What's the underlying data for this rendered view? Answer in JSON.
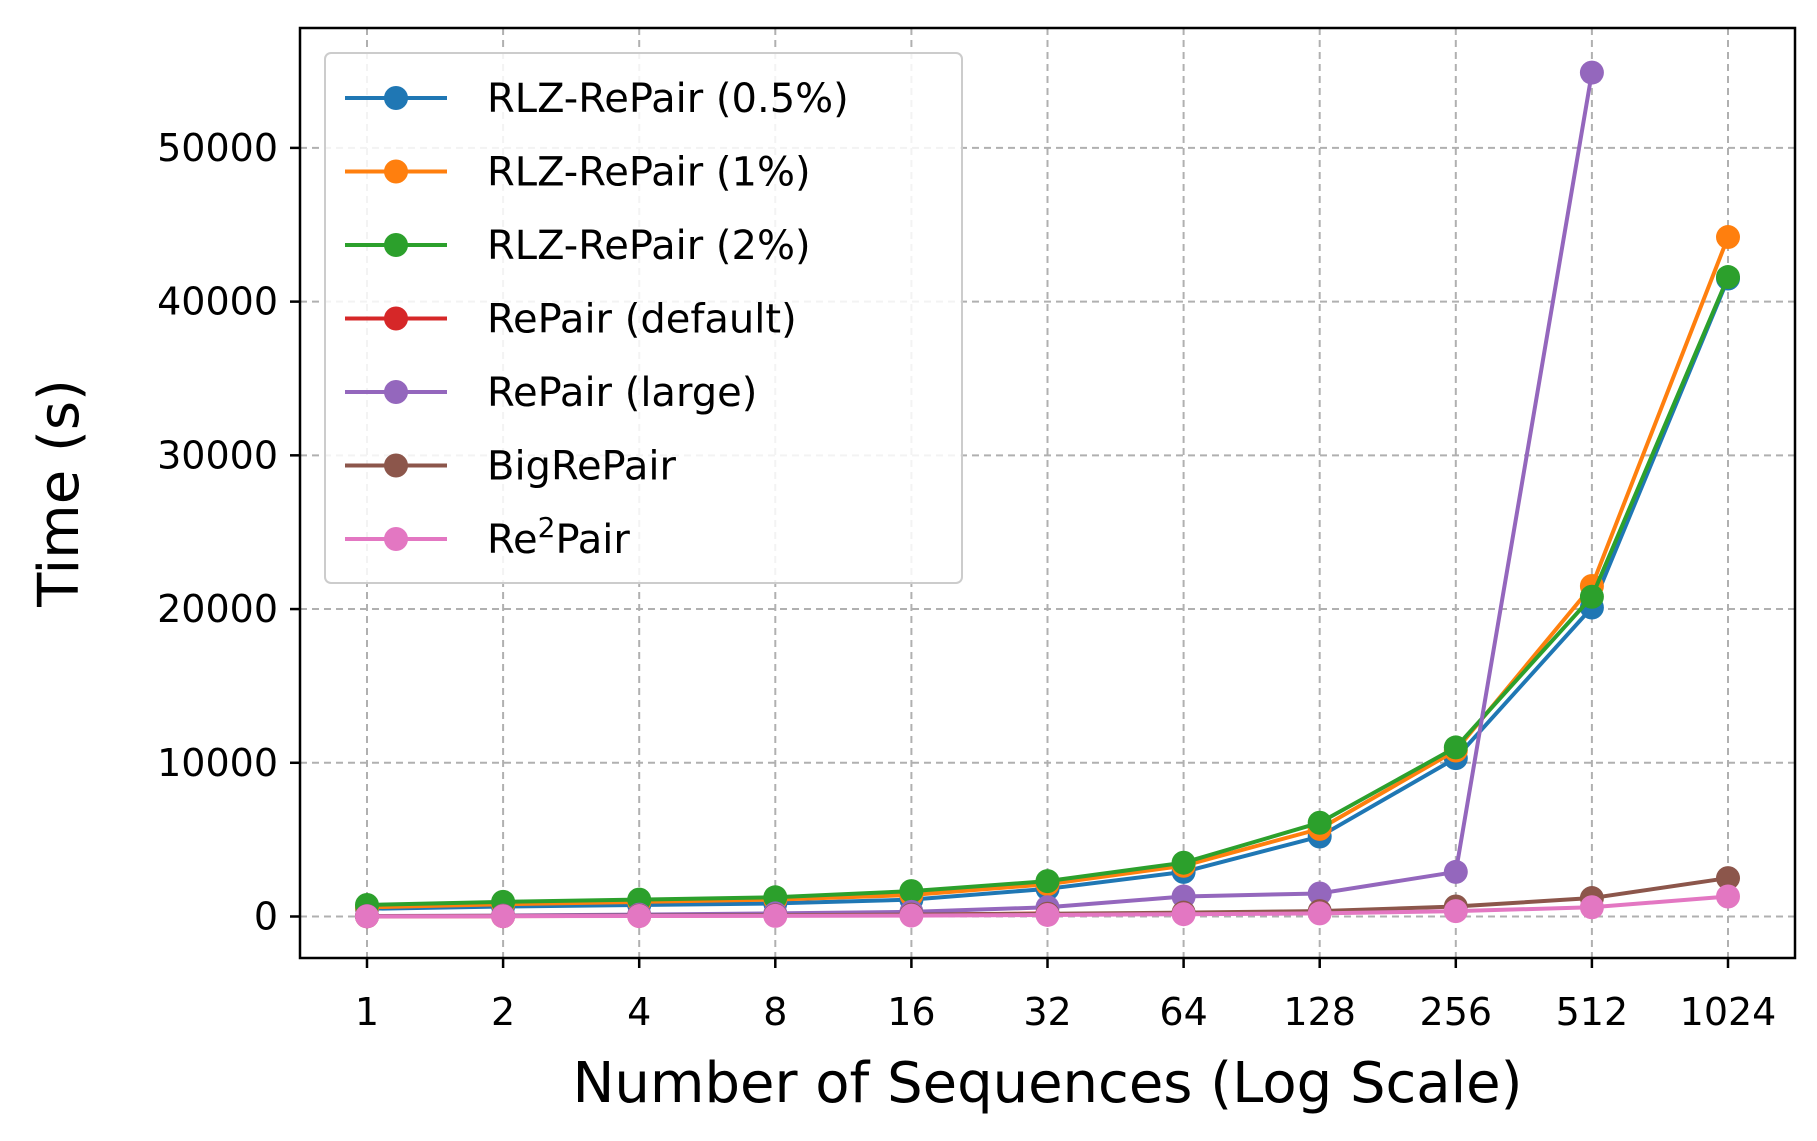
{
  "chart_data": {
    "type": "line",
    "xlabel": "Number of Sequences (Log Scale)",
    "ylabel": "Time (s)",
    "x": [
      1,
      2,
      4,
      8,
      16,
      32,
      64,
      128,
      256,
      512,
      1024
    ],
    "x_tick_labels": [
      "1",
      "2",
      "4",
      "8",
      "16",
      "32",
      "64",
      "128",
      "256",
      "512",
      "1024"
    ],
    "x_scale": "log2",
    "ylim": [
      -2700,
      57800
    ],
    "y_ticks": [
      0,
      10000,
      20000,
      30000,
      40000,
      50000
    ],
    "y_tick_labels": [
      "0",
      "10000",
      "20000",
      "30000",
      "40000",
      "50000"
    ],
    "grid": true,
    "legend_position": "upper-left",
    "series": [
      {
        "name": "RLZ-RePair (0.5%)",
        "color": "#1f77b4",
        "values": [
          500,
          650,
          750,
          850,
          1100,
          1800,
          2900,
          5200,
          10300,
          20100,
          41500
        ]
      },
      {
        "name": "RLZ-RePair (1%)",
        "color": "#ff7f0e",
        "values": [
          600,
          800,
          950,
          1100,
          1400,
          2100,
          3300,
          5700,
          10800,
          21500,
          44200
        ]
      },
      {
        "name": "RLZ-RePair (2%)",
        "color": "#2ca02c",
        "values": [
          750,
          950,
          1100,
          1250,
          1650,
          2300,
          3500,
          6100,
          11000,
          20800,
          41600
        ]
      },
      {
        "name": "RePair (default)",
        "color": "#d62728",
        "values": [
          10,
          20,
          40,
          70,
          120,
          200,
          null,
          null,
          null,
          null,
          null
        ]
      },
      {
        "name": "RePair (large)",
        "color": "#9467bd",
        "values": [
          30,
          60,
          120,
          200,
          300,
          600,
          1300,
          1500,
          2900,
          54900,
          null
        ]
      },
      {
        "name": "BigRePair",
        "color": "#8c564b",
        "values": [
          20,
          40,
          60,
          80,
          120,
          180,
          250,
          350,
          650,
          1200,
          2500
        ]
      },
      {
        "name": "Re²Pair",
        "name_parts": [
          "Re",
          "2",
          "Pair"
        ],
        "color": "#e377c2",
        "values": [
          10,
          20,
          30,
          40,
          60,
          100,
          150,
          200,
          350,
          600,
          1300
        ]
      }
    ]
  }
}
